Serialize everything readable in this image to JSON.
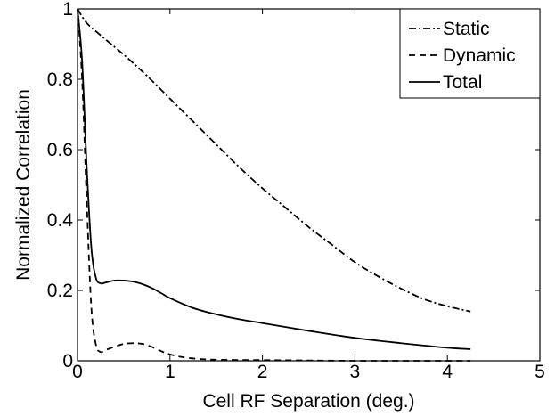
{
  "chart_data": {
    "type": "line",
    "title": "",
    "xlabel": "Cell RF Separation (deg.)",
    "ylabel": "Normalized Correlation",
    "xlim": [
      0,
      5
    ],
    "ylim": [
      0,
      1
    ],
    "xticks": [
      "0",
      "1",
      "2",
      "3",
      "4",
      "5"
    ],
    "yticks": [
      "0",
      "0.2",
      "0.4",
      "0.6",
      "0.8",
      "1"
    ],
    "grid": false,
    "legend_position": "top-right",
    "series": [
      {
        "name": "Static",
        "style": "dash-dot",
        "x": [
          0,
          0.1,
          0.25,
          0.5,
          0.75,
          1.0,
          1.25,
          1.5,
          1.75,
          2.0,
          2.25,
          2.5,
          2.75,
          3.0,
          3.25,
          3.5,
          3.75,
          4.0,
          4.25
        ],
        "y": [
          1.0,
          0.96,
          0.925,
          0.87,
          0.81,
          0.745,
          0.68,
          0.615,
          0.55,
          0.49,
          0.435,
          0.38,
          0.33,
          0.28,
          0.24,
          0.205,
          0.175,
          0.155,
          0.14
        ]
      },
      {
        "name": "Dynamic",
        "style": "dashed",
        "x": [
          0,
          0.05,
          0.1,
          0.15,
          0.2,
          0.25,
          0.3,
          0.4,
          0.5,
          0.6,
          0.7,
          0.8,
          0.9,
          1.0,
          1.2,
          1.5,
          2.0,
          2.5,
          3.0,
          3.5,
          4.0,
          4.25
        ],
        "y": [
          1.0,
          0.8,
          0.45,
          0.15,
          0.045,
          0.025,
          0.03,
          0.04,
          0.048,
          0.05,
          0.048,
          0.04,
          0.028,
          0.018,
          0.008,
          0.003,
          0.002,
          0.001,
          0.0,
          0.0,
          0.0,
          0.0
        ]
      },
      {
        "name": "Total",
        "style": "solid",
        "x": [
          0,
          0.05,
          0.1,
          0.15,
          0.2,
          0.25,
          0.3,
          0.4,
          0.5,
          0.6,
          0.7,
          0.8,
          0.9,
          1.0,
          1.25,
          1.5,
          1.75,
          2.0,
          2.5,
          3.0,
          3.5,
          4.0,
          4.25
        ],
        "y": [
          1.0,
          0.85,
          0.55,
          0.32,
          0.235,
          0.22,
          0.222,
          0.228,
          0.228,
          0.225,
          0.218,
          0.207,
          0.193,
          0.178,
          0.15,
          0.132,
          0.118,
          0.107,
          0.085,
          0.065,
          0.05,
          0.037,
          0.033
        ]
      }
    ]
  }
}
